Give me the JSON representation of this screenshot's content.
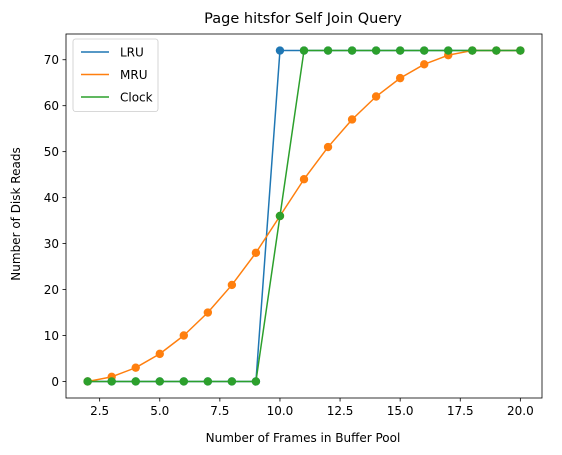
{
  "chart_data": {
    "type": "line",
    "title": "Page hitsfor Self Join Query",
    "xlabel": "Number of Frames in Buffer Pool",
    "ylabel": "Number of Disk Reads",
    "xlim": [
      1.1,
      20.9
    ],
    "ylim": [
      -3.6,
      75.6
    ],
    "xticks": [
      2.5,
      5.0,
      7.5,
      10.0,
      12.5,
      15.0,
      17.5,
      20.0
    ],
    "xtick_labels": [
      "2.5",
      "5.0",
      "7.5",
      "10.0",
      "12.5",
      "15.0",
      "17.5",
      "20.0"
    ],
    "yticks": [
      0,
      10,
      20,
      30,
      40,
      50,
      60,
      70
    ],
    "ytick_labels": [
      "0",
      "10",
      "20",
      "30",
      "40",
      "50",
      "60",
      "70"
    ],
    "grid": false,
    "legend_position": "top-left",
    "x": [
      2,
      3,
      4,
      5,
      6,
      7,
      8,
      9,
      10,
      11,
      12,
      13,
      14,
      15,
      16,
      17,
      18,
      19,
      20
    ],
    "series": [
      {
        "name": "LRU",
        "color": "#1f77b4",
        "values": [
          0,
          0,
          0,
          0,
          0,
          0,
          0,
          0,
          72,
          72,
          72,
          72,
          72,
          72,
          72,
          72,
          72,
          72,
          72
        ]
      },
      {
        "name": "MRU",
        "color": "#ff7f0e",
        "values": [
          0,
          1,
          3,
          6,
          10,
          15,
          21,
          28,
          36,
          44,
          51,
          57,
          62,
          66,
          69,
          71,
          72,
          72,
          72
        ]
      },
      {
        "name": "Clock",
        "color": "#2ca02c",
        "values": [
          0,
          0,
          0,
          0,
          0,
          0,
          0,
          0,
          36,
          72,
          72,
          72,
          72,
          72,
          72,
          72,
          72,
          72,
          72
        ]
      }
    ]
  }
}
